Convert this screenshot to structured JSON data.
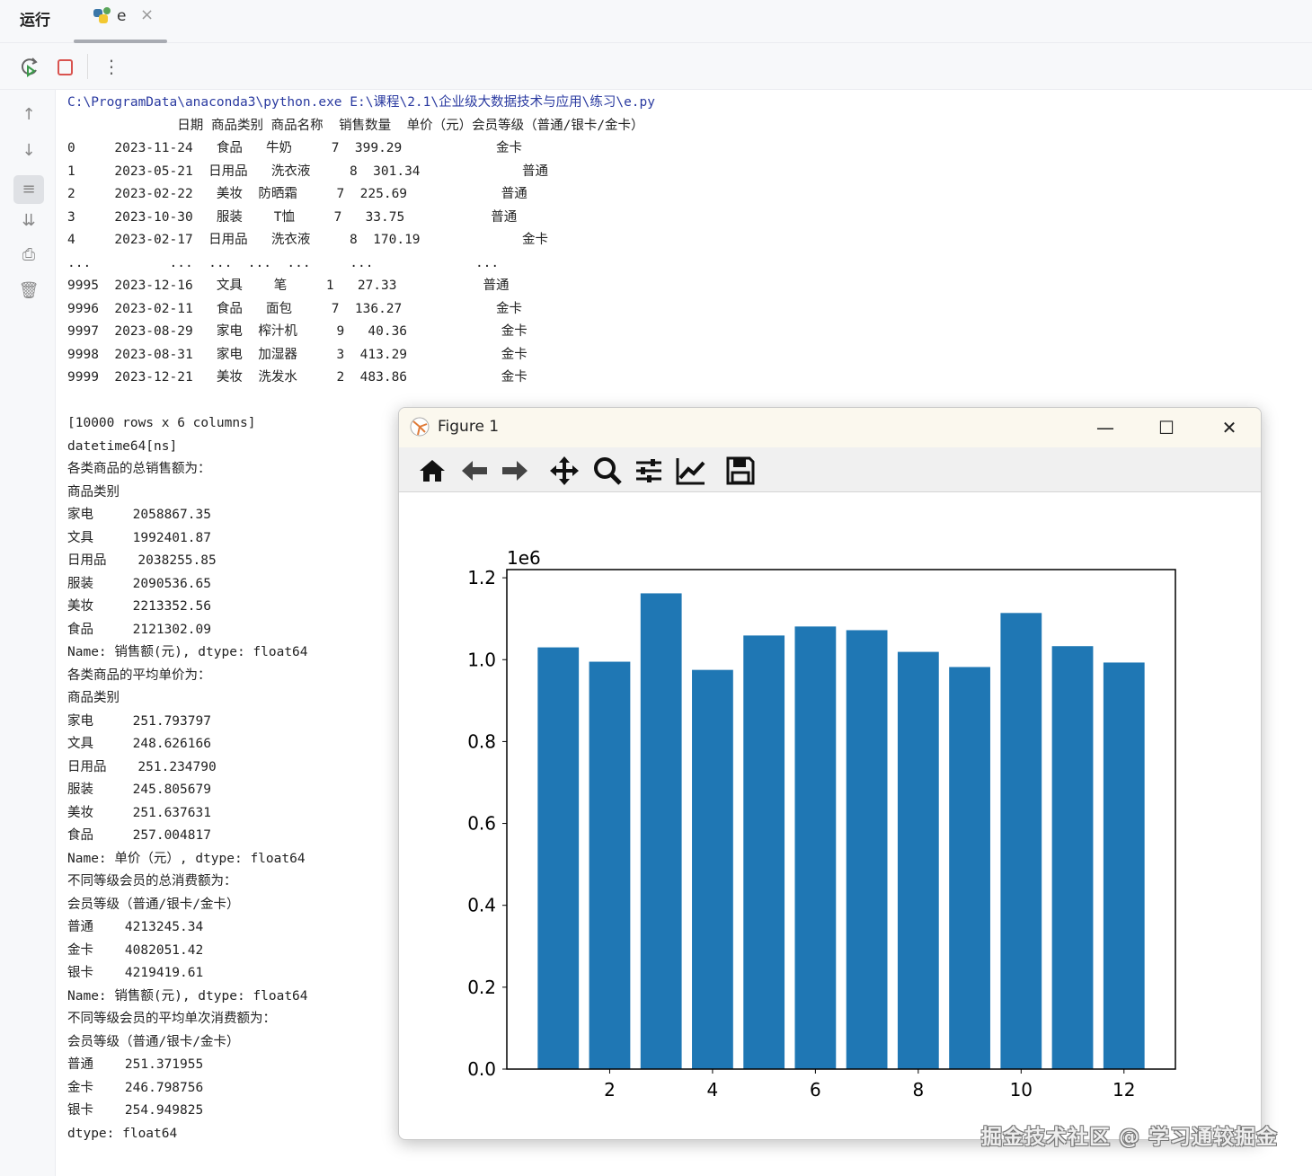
{
  "tabbar": {
    "run_label": "运行",
    "tab_name": "e",
    "close": "×"
  },
  "toolbar": {
    "icons": [
      "rerun-icon",
      "stop-icon",
      "more-icon"
    ]
  },
  "gutter": {
    "icons": [
      "arrow-up-icon",
      "arrow-down-icon",
      "soft-wrap-icon",
      "scroll-to-end-icon",
      "print-icon",
      "trash-icon"
    ]
  },
  "console": {
    "lines": [
      "C:\\ProgramData\\anaconda3\\python.exe E:\\课程\\2.1\\企业级大数据技术与应用\\练习\\e.py",
      "              日期 商品类别 商品名称  销售数量  单价（元）会员等级（普通/银卡/金卡）",
      "0     2023-11-24   食品   牛奶     7  399.29            金卡",
      "1     2023-05-21  日用品   洗衣液     8  301.34             普通",
      "2     2023-02-22   美妆  防晒霜     7  225.69            普通",
      "3     2023-10-30   服装    T恤     7   33.75           普通",
      "4     2023-02-17  日用品   洗衣液     8  170.19             金卡",
      "...          ...  ...  ...  ...     ...             ...",
      "9995  2023-12-16   文具    笔     1   27.33           普通",
      "9996  2023-02-11   食品   面包     7  136.27            金卡",
      "9997  2023-08-29   家电  榨汁机     9   40.36            金卡",
      "9998  2023-08-31   家电  加湿器     3  413.29            金卡",
      "9999  2023-12-21   美妆  洗发水     2  483.86            金卡",
      "",
      "[10000 rows x 6 columns]",
      "datetime64[ns]",
      "各类商品的总销售额为：",
      "商品类别",
      "家电     2058867.35",
      "文具     1992401.87",
      "日用品    2038255.85",
      "服装     2090536.65",
      "美妆     2213352.56",
      "食品     2121302.09",
      "Name: 销售额(元), dtype: float64",
      "各类商品的平均单价为：",
      "商品类别",
      "家电     251.793797",
      "文具     248.626166",
      "日用品    251.234790",
      "服装     245.805679",
      "美妆     251.637631",
      "食品     257.004817",
      "Name: 单价（元）, dtype: float64",
      "不同等级会员的总消费额为：",
      "会员等级（普通/银卡/金卡）",
      "普通    4213245.34",
      "金卡    4082051.42",
      "银卡    4219419.61",
      "Name: 销售额(元), dtype: float64",
      "不同等级会员的平均单次消费额为：",
      "会员等级（普通/银卡/金卡）",
      "普通    251.371955",
      "金卡    246.798756",
      "银卡    254.949825",
      "dtype: float64"
    ]
  },
  "figure": {
    "title": "Figure 1",
    "minimize": "—",
    "maximize": "☐",
    "close": "✕",
    "tools": [
      "home-icon",
      "back-icon",
      "forward-icon",
      "pan-icon",
      "zoom-icon",
      "configure-subplots-icon",
      "edit-axis-icon",
      "save-icon"
    ]
  },
  "chart_data": {
    "type": "bar",
    "x": [
      1,
      2,
      3,
      4,
      5,
      6,
      7,
      8,
      9,
      10,
      11,
      12
    ],
    "values": [
      1030000,
      995000,
      1162000,
      975000,
      1059000,
      1081000,
      1072000,
      1019000,
      982000,
      1114000,
      1033000,
      993000
    ],
    "color": "#1f77b4",
    "offset_label": "1e6",
    "xlim": [
      0,
      13
    ],
    "ylim": [
      0,
      1.22
    ],
    "xticks": [
      "2",
      "4",
      "6",
      "8",
      "10",
      "12"
    ],
    "yticks": [
      "0.0",
      "0.2",
      "0.4",
      "0.6",
      "0.8",
      "1.0",
      "1.2"
    ],
    "title": "",
    "xlabel": "",
    "ylabel": "",
    "grid": false
  },
  "watermark": "掘金技术社区 @ 学习通较掘金"
}
